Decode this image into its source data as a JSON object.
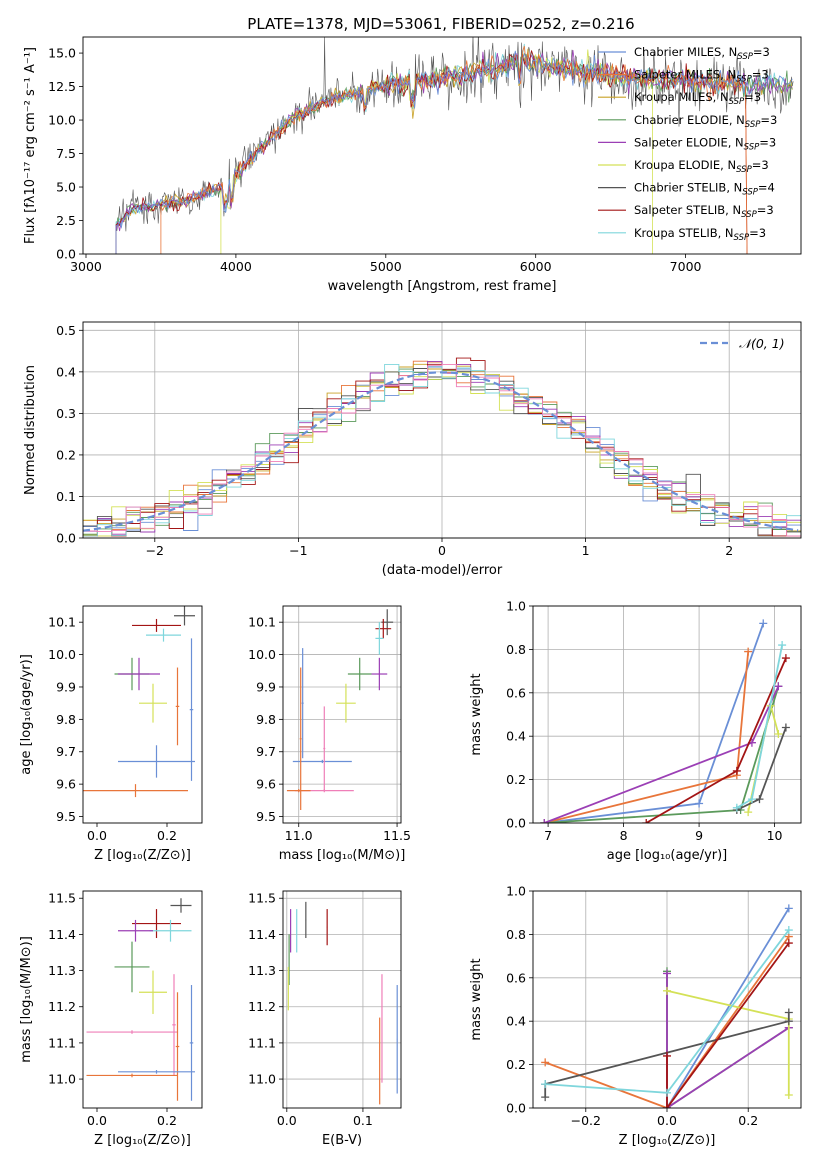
{
  "figure": {
    "title": "PLATE=1378, MJD=53061, FIBERID=0252, z=0.216"
  },
  "chart_data": [
    {
      "id": "spectrum",
      "type": "line",
      "xlabel": "wavelength [Angstrom, rest frame]",
      "ylabel": "Flux [fλ10⁻¹⁷ erg cm⁻² s⁻¹ A⁻¹]",
      "xlim": [
        2980,
        7770
      ],
      "ylim": [
        0,
        16.2
      ],
      "xticks": [
        3000,
        4000,
        5000,
        6000,
        7000
      ],
      "xtick_labels": [
        "3000",
        "4000",
        "5000",
        "6000",
        "7000"
      ],
      "yticks": [
        0,
        2.5,
        5,
        7.5,
        10,
        12.5,
        15
      ],
      "ytick_labels": [
        "0.0",
        "2.5",
        "5.0",
        "7.5",
        "10.0",
        "12.5",
        "15.0"
      ],
      "grid": false,
      "legend_position": "right",
      "legend": [
        {
          "label": "Chabrier MILES, N",
          "sub": "SSP",
          "tail": "=3",
          "color": "#6a8fd6"
        },
        {
          "label": "Salpeter MILES, N",
          "sub": "SSP",
          "tail": "=3",
          "color": "#e8753a"
        },
        {
          "label": "Kroupa MILES, N",
          "sub": "SSP",
          "tail": "=3",
          "color": "#c9a227"
        },
        {
          "label": "Chabrier ELODIE, N",
          "sub": "SSP",
          "tail": "=3",
          "color": "#5b9a5b"
        },
        {
          "label": "Salpeter ELODIE, N",
          "sub": "SSP",
          "tail": "=3",
          "color": "#9b3fb5"
        },
        {
          "label": "Kroupa ELODIE, N",
          "sub": "SSP",
          "tail": "=3",
          "color": "#d4e157"
        },
        {
          "label": "Chabrier STELIB, N",
          "sub": "SSP",
          "tail": "=4",
          "color": "#555555"
        },
        {
          "label": "Salpeter STELIB, N",
          "sub": "SSP",
          "tail": "=3",
          "color": "#a31515"
        },
        {
          "label": "Kroupa STELIB, N",
          "sub": "SSP",
          "tail": "=3",
          "color": "#7fd6dc"
        }
      ],
      "continuum": [
        [
          3200,
          2.1
        ],
        [
          3300,
          3.4
        ],
        [
          3500,
          3.7
        ],
        [
          3700,
          4.1
        ],
        [
          3900,
          5.0
        ],
        [
          4000,
          5.9
        ],
        [
          4100,
          7.1
        ],
        [
          4200,
          8.3
        ],
        [
          4300,
          9.3
        ],
        [
          4400,
          10.3
        ],
        [
          4600,
          11.4
        ],
        [
          4800,
          12.1
        ],
        [
          5000,
          12.6
        ],
        [
          5200,
          12.9
        ],
        [
          5400,
          13.2
        ],
        [
          5600,
          13.6
        ],
        [
          5800,
          14.0
        ],
        [
          5900,
          14.8
        ],
        [
          6000,
          14.1
        ],
        [
          6200,
          13.8
        ],
        [
          6400,
          13.5
        ],
        [
          6600,
          13.2
        ],
        [
          6800,
          13.1
        ],
        [
          7000,
          13.0
        ],
        [
          7200,
          12.8
        ],
        [
          7400,
          12.7
        ],
        [
          7700,
          12.6
        ]
      ]
    },
    {
      "id": "residuals",
      "type": "histogram",
      "xlabel": "(data-model)/error",
      "ylabel": "Normed distribution",
      "xlim": [
        -2.5,
        2.5
      ],
      "ylim": [
        0,
        0.52
      ],
      "xticks": [
        -2,
        -1,
        0,
        1,
        2
      ],
      "xtick_labels": [
        "−2",
        "−1",
        "0",
        "1",
        "2"
      ],
      "yticks": [
        0,
        0.1,
        0.2,
        0.3,
        0.4,
        0.5
      ],
      "ytick_labels": [
        "0.0",
        "0.1",
        "0.2",
        "0.3",
        "0.4",
        "0.5"
      ],
      "grid": true,
      "legend_position": "top-right",
      "gaussian_label": "𝒩(0, 1)",
      "gaussian_color": "#6a8fd6",
      "bin_width": 0.1
    },
    {
      "id": "age_vs_Z",
      "type": "errorbar",
      "xlabel": "Z [log₁₀(Z/Z⊙)]",
      "ylabel": "age  [log₁₀(age/yr)]",
      "xlim": [
        -0.04,
        0.3
      ],
      "ylim": [
        9.48,
        10.15
      ],
      "xticks": [
        0,
        0.2
      ],
      "xtick_labels": [
        "0.0",
        "0.2"
      ],
      "yticks": [
        9.5,
        9.6,
        9.7,
        9.8,
        9.9,
        10.0,
        10.1
      ],
      "ytick_labels": [
        "9.5",
        "9.6",
        "9.7",
        "9.8",
        "9.9",
        "10.0",
        "10.1"
      ],
      "grid": false,
      "points": [
        {
          "x": 0.25,
          "y": 10.12,
          "xe": 0.03,
          "ye": 0.03,
          "color": "#555555"
        },
        {
          "x": 0.17,
          "y": 10.09,
          "xe": 0.07,
          "ye": 0.02,
          "color": "#a31515"
        },
        {
          "x": 0.19,
          "y": 10.06,
          "xe": 0.05,
          "ye": 0.02,
          "color": "#7fd6dc"
        },
        {
          "x": 0.1,
          "y": 9.94,
          "xe": 0.05,
          "ye": 0.05,
          "color": "#5b9a5b"
        },
        {
          "x": 0.12,
          "y": 9.94,
          "xe": 0.06,
          "ye": 0.05,
          "color": "#9b3fb5"
        },
        {
          "x": 0.16,
          "y": 9.85,
          "xe": 0.04,
          "ye": 0.06,
          "color": "#d4e157"
        },
        {
          "x": 0.17,
          "y": 9.67,
          "xe": 0.11,
          "ye": 0.05,
          "color": "#6a8fd6"
        },
        {
          "x": 0.23,
          "y": 9.84,
          "xe": 0.005,
          "ye": 0.12,
          "color": "#e8753a"
        },
        {
          "x": 0.11,
          "y": 9.58,
          "xe": 0.15,
          "ye": 0.02,
          "color": "#e8753a"
        },
        {
          "x": 0.27,
          "y": 9.83,
          "xe": 0.005,
          "ye": 0.22,
          "color": "#6a8fd6"
        }
      ]
    },
    {
      "id": "age_vs_mass",
      "type": "errorbar",
      "xlabel": "mass [log₁₀(M/M⊙)]",
      "ylabel": "",
      "xlim": [
        10.92,
        11.52
      ],
      "ylim": [
        9.48,
        10.15
      ],
      "xticks": [
        11.0,
        11.5
      ],
      "xtick_labels": [
        "11.0",
        "11.5"
      ],
      "yticks": [
        9.5,
        9.6,
        9.7,
        9.8,
        9.9,
        10.0,
        10.1
      ],
      "ytick_labels": [
        "9.5",
        "9.6",
        "9.7",
        "9.8",
        "9.9",
        "10.0",
        "10.1"
      ],
      "grid": true,
      "points": [
        {
          "x": 11.45,
          "y": 10.1,
          "xe": 0.03,
          "ye": 0.04,
          "color": "#555555"
        },
        {
          "x": 11.43,
          "y": 10.08,
          "xe": 0.04,
          "ye": 0.03,
          "color": "#a31515"
        },
        {
          "x": 11.41,
          "y": 10.05,
          "xe": 0.02,
          "ye": 0.05,
          "color": "#7fd6dc"
        },
        {
          "x": 11.31,
          "y": 9.94,
          "xe": 0.06,
          "ye": 0.05,
          "color": "#5b9a5b"
        },
        {
          "x": 11.41,
          "y": 9.94,
          "xe": 0.04,
          "ye": 0.05,
          "color": "#9b3fb5"
        },
        {
          "x": 11.24,
          "y": 9.85,
          "xe": 0.05,
          "ye": 0.06,
          "color": "#d4e157"
        },
        {
          "x": 11.12,
          "y": 9.67,
          "xe": 0.15,
          "ye": 0.005,
          "color": "#6a8fd6"
        },
        {
          "x": 11.13,
          "y": 9.58,
          "xe": 0.15,
          "ye": 0.005,
          "color": "#ef7fb8"
        },
        {
          "x": 11.13,
          "y": 9.71,
          "xe": 0.005,
          "ye": 0.13,
          "color": "#ef7fb8"
        },
        {
          "x": 11.01,
          "y": 9.74,
          "xe": 0.005,
          "ye": 0.22,
          "color": "#e8753a"
        },
        {
          "x": 11.0,
          "y": 9.58,
          "xe": 0.06,
          "ye": 0.005,
          "color": "#e8753a"
        },
        {
          "x": 11.02,
          "y": 9.85,
          "xe": 0.005,
          "ye": 0.17,
          "color": "#6a8fd6"
        }
      ]
    },
    {
      "id": "weight_vs_age",
      "type": "line",
      "xlabel": "age  [log₁₀(age/yr)]",
      "ylabel": "mass weight",
      "xlim": [
        6.8,
        10.35
      ],
      "ylim": [
        0,
        1.0
      ],
      "xticks": [
        7,
        8,
        9,
        10
      ],
      "xtick_labels": [
        "7",
        "8",
        "9",
        "10"
      ],
      "yticks": [
        0,
        0.2,
        0.4,
        0.6,
        0.8,
        1.0
      ],
      "ytick_labels": [
        "0.0",
        "0.2",
        "0.4",
        "0.6",
        "0.8",
        "1.0"
      ],
      "grid": true,
      "series": [
        {
          "color": "#6a8fd6",
          "x": [
            6.95,
            9.0,
            9.85
          ],
          "y": [
            0.0,
            0.09,
            0.92
          ]
        },
        {
          "color": "#e8753a",
          "x": [
            6.95,
            9.5,
            9.65
          ],
          "y": [
            0.0,
            0.22,
            0.79
          ]
        },
        {
          "color": "#5b9a5b",
          "x": [
            6.95,
            9.55,
            10.05
          ],
          "y": [
            0.0,
            0.06,
            0.63
          ]
        },
        {
          "color": "#9b3fb5",
          "x": [
            6.95,
            9.7,
            10.05
          ],
          "y": [
            0.0,
            0.37,
            0.63
          ]
        },
        {
          "color": "#d4e157",
          "x": [
            9.65,
            9.95,
            10.05
          ],
          "y": [
            0.05,
            0.54,
            0.41
          ]
        },
        {
          "color": "#555555",
          "x": [
            9.5,
            9.8,
            10.15
          ],
          "y": [
            0.06,
            0.11,
            0.44
          ]
        },
        {
          "color": "#a31515",
          "x": [
            8.3,
            9.5,
            10.15
          ],
          "y": [
            0.0,
            0.24,
            0.76
          ]
        },
        {
          "color": "#7fd6dc",
          "x": [
            9.5,
            9.7,
            10.1
          ],
          "y": [
            0.07,
            0.11,
            0.82
          ]
        }
      ]
    },
    {
      "id": "mass_vs_Z",
      "type": "errorbar",
      "xlabel": "Z [log₁₀(Z/Z⊙)]",
      "ylabel": "mass [log₁₀(M/M⊙)]",
      "xlim": [
        -0.04,
        0.3
      ],
      "ylim": [
        10.92,
        11.52
      ],
      "xticks": [
        0,
        0.2
      ],
      "xtick_labels": [
        "0.0",
        "0.2"
      ],
      "yticks": [
        11.0,
        11.1,
        11.2,
        11.3,
        11.4,
        11.5
      ],
      "ytick_labels": [
        "11.0",
        "11.1",
        "11.2",
        "11.3",
        "11.4",
        "11.5"
      ],
      "grid": false,
      "points": [
        {
          "x": 0.24,
          "y": 11.48,
          "xe": 0.03,
          "ye": 0.02,
          "color": "#555555"
        },
        {
          "x": 0.17,
          "y": 11.43,
          "xe": 0.07,
          "ye": 0.04,
          "color": "#a31515"
        },
        {
          "x": 0.21,
          "y": 11.41,
          "xe": 0.06,
          "ye": 0.03,
          "color": "#7fd6dc"
        },
        {
          "x": 0.11,
          "y": 11.41,
          "xe": 0.05,
          "ye": 0.03,
          "color": "#9b3fb5"
        },
        {
          "x": 0.1,
          "y": 11.31,
          "xe": 0.05,
          "ye": 0.07,
          "color": "#5b9a5b"
        },
        {
          "x": 0.16,
          "y": 11.24,
          "xe": 0.04,
          "ye": 0.06,
          "color": "#d4e157"
        },
        {
          "x": 0.1,
          "y": 11.13,
          "xe": 0.13,
          "ye": 0.005,
          "color": "#ef7fb8"
        },
        {
          "x": 0.22,
          "y": 11.15,
          "xe": 0.005,
          "ye": 0.14,
          "color": "#ef7fb8"
        },
        {
          "x": 0.1,
          "y": 11.01,
          "xe": 0.13,
          "ye": 0.005,
          "color": "#e8753a"
        },
        {
          "x": 0.23,
          "y": 11.09,
          "xe": 0.005,
          "ye": 0.15,
          "color": "#e8753a"
        },
        {
          "x": 0.17,
          "y": 11.02,
          "xe": 0.11,
          "ye": 0.005,
          "color": "#6a8fd6"
        },
        {
          "x": 0.27,
          "y": 11.1,
          "xe": 0.005,
          "ye": 0.16,
          "color": "#6a8fd6"
        }
      ]
    },
    {
      "id": "mass_vs_EBV",
      "type": "errorbar",
      "xlabel": "E(B-V)",
      "ylabel": "",
      "xlim": [
        -0.005,
        0.15
      ],
      "ylim": [
        10.92,
        11.52
      ],
      "xticks": [
        0,
        0.1
      ],
      "xtick_labels": [
        "0.0",
        "0.1"
      ],
      "yticks": [
        11.0,
        11.1,
        11.2,
        11.3,
        11.4,
        11.5
      ],
      "ytick_labels": [
        "11.0",
        "11.1",
        "11.2",
        "11.3",
        "11.4",
        "11.5"
      ],
      "grid": true,
      "points": [
        {
          "x": 0.025,
          "y": 11.44,
          "xe": 0.0005,
          "ye": 0.05,
          "color": "#555555"
        },
        {
          "x": 0.053,
          "y": 11.42,
          "xe": 0.0005,
          "ye": 0.05,
          "color": "#a31515"
        },
        {
          "x": 0.013,
          "y": 11.41,
          "xe": 0.0005,
          "ye": 0.06,
          "color": "#7fd6dc"
        },
        {
          "x": 0.005,
          "y": 11.41,
          "xe": 0.0005,
          "ye": 0.06,
          "color": "#9b3fb5"
        },
        {
          "x": 0.003,
          "y": 11.33,
          "xe": 0.0005,
          "ye": 0.07,
          "color": "#5b9a5b"
        },
        {
          "x": 0.002,
          "y": 11.25,
          "xe": 0.0005,
          "ye": 0.06,
          "color": "#d4e157"
        },
        {
          "x": 0.125,
          "y": 11.14,
          "xe": 0.0005,
          "ye": 0.15,
          "color": "#ef7fb8"
        },
        {
          "x": 0.122,
          "y": 11.05,
          "xe": 0.0005,
          "ye": 0.12,
          "color": "#e8753a"
        },
        {
          "x": 0.145,
          "y": 11.11,
          "xe": 0.0005,
          "ye": 0.15,
          "color": "#6a8fd6"
        }
      ]
    },
    {
      "id": "weight_vs_Z",
      "type": "line",
      "xlabel": "Z [log₁₀(Z/Z⊙)]",
      "ylabel": "mass weight",
      "xlim": [
        -0.33,
        0.33
      ],
      "ylim": [
        0,
        1.0
      ],
      "xticks": [
        -0.2,
        0,
        0.2
      ],
      "xtick_labels": [
        "−0.2",
        "0.0",
        "0.2"
      ],
      "yticks": [
        0,
        0.2,
        0.4,
        0.6,
        0.8,
        1.0
      ],
      "ytick_labels": [
        "0.0",
        "0.2",
        "0.4",
        "0.6",
        "0.8",
        "1.0"
      ],
      "grid": true,
      "series": [
        {
          "color": "#6a8fd6",
          "x": [
            0.0,
            0.3
          ],
          "y": [
            0.0,
            0.92
          ]
        },
        {
          "color": "#e8753a",
          "x": [
            -0.3,
            0.0,
            0.3
          ],
          "y": [
            0.21,
            0.0,
            0.79
          ]
        },
        {
          "color": "#5b9a5b",
          "x": [
            0.0,
            0.0,
            0.3
          ],
          "y": [
            0.63,
            0.0,
            0.37
          ]
        },
        {
          "color": "#9b3fb5",
          "x": [
            0.0,
            0.0,
            0.3
          ],
          "y": [
            0.62,
            0.0,
            0.37
          ]
        },
        {
          "color": "#d4e157",
          "x": [
            0.0,
            0.3,
            0.3
          ],
          "y": [
            0.54,
            0.41,
            0.06
          ]
        },
        {
          "color": "#555555",
          "x": [
            -0.3,
            -0.3,
            0.3,
            0.3
          ],
          "y": [
            0.05,
            0.11,
            0.4,
            0.44
          ]
        },
        {
          "color": "#a31515",
          "x": [
            0.0,
            0.0,
            0.3
          ],
          "y": [
            0.24,
            0.0,
            0.76
          ]
        },
        {
          "color": "#7fd6dc",
          "x": [
            -0.3,
            0.0,
            0.3
          ],
          "y": [
            0.11,
            0.07,
            0.82
          ]
        }
      ]
    }
  ]
}
